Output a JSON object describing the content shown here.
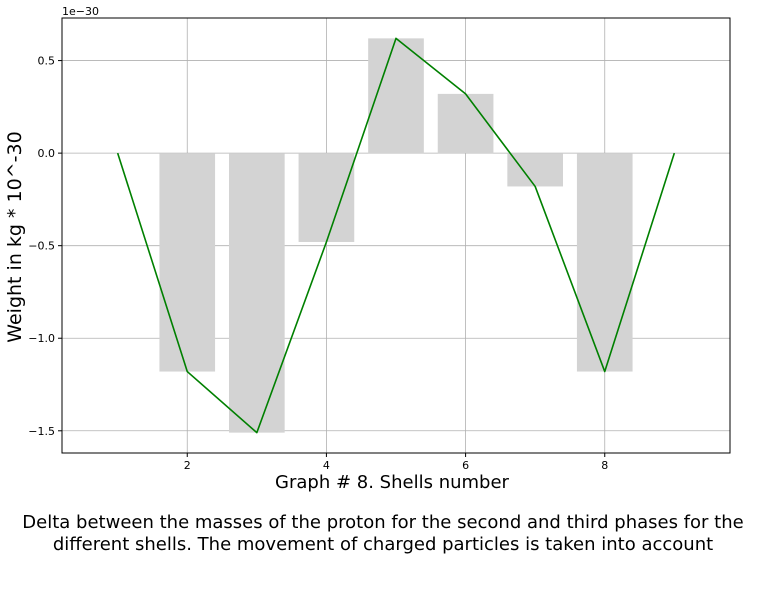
{
  "chart_data": {
    "type": "bar",
    "exponent_label": "1e−30",
    "xlabel": "Graph # 8. Shells number",
    "ylabel": "Weight in kg * 10^-30",
    "xlim": [
      0.2,
      9.8
    ],
    "ylim": [
      -1.62,
      0.73
    ],
    "grid": true,
    "x_ticks": [
      2,
      4,
      6,
      8
    ],
    "x_tick_labels": [
      "2",
      "4",
      "6",
      "8"
    ],
    "y_ticks": [
      0.5,
      0.0,
      -0.5,
      -1.0,
      -1.5
    ],
    "y_tick_labels": [
      "0.5",
      "0.0",
      "−0.5",
      "−1.0",
      "−1.5"
    ],
    "bar_width": 0.8,
    "bar_color": "#d3d3d3",
    "line_color": "#008000",
    "bars": {
      "x": [
        2,
        3,
        4,
        5,
        6,
        7,
        8
      ],
      "values": [
        -1.18,
        -1.51,
        -0.48,
        0.62,
        0.32,
        -0.18,
        -1.18
      ]
    },
    "line": {
      "x": [
        1,
        2,
        3,
        4,
        5,
        6,
        7,
        8,
        9
      ],
      "values": [
        0.0,
        -1.18,
        -1.51,
        -0.48,
        0.62,
        0.32,
        -0.18,
        -1.18,
        0.0
      ]
    }
  },
  "caption": {
    "line1": "Delta between the masses of the proton for the second and third phases for the",
    "line2": "different shells. The movement of charged particles is taken into account"
  }
}
